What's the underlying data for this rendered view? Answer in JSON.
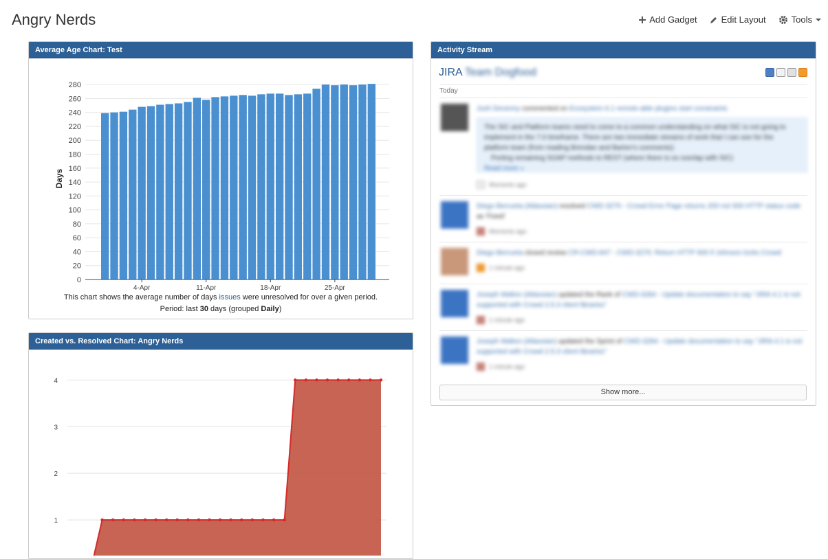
{
  "page": {
    "title": "Angry Nerds"
  },
  "toolbar": {
    "add_gadget": "Add Gadget",
    "edit_layout": "Edit Layout",
    "tools": "Tools"
  },
  "average_age": {
    "title": "Average Age Chart: Test",
    "caption_prefix": "This chart shows the average number of days ",
    "caption_link": "issues",
    "caption_suffix": " were unresolved for over a given period.",
    "period_prefix": "Period: last ",
    "period_days": "30",
    "period_middle": " days (grouped ",
    "period_group": "Daily",
    "period_suffix": ")"
  },
  "created_resolved": {
    "title": "Created vs. Resolved Chart: Angry Nerds"
  },
  "activity": {
    "title": "Activity Stream",
    "stream_name_prefix": "JIRA",
    "stream_name_rest": "Team Dogfood",
    "today_label": "Today",
    "show_more": "Show more...",
    "entries": [
      {
        "user": "Josh Devenny",
        "verb": " commented on ",
        "target": "Ecosystem 6.1 remote-able plugins start constraints",
        "quote": "The SIC and Platform teams need to come to a common understanding on what SIC is not going to implement in the 7.0 timeframe. There are two immediate streams of work that I can see for the platform team (from reading Brendan and Barton's comments):",
        "bullet": "Porting remaining SOAP methods to REST (where there is no overlap with SIC)",
        "read_more": "Read more »",
        "time": "Moments ago"
      },
      {
        "user": "Diego Berrueta (Atlassian)",
        "verb": " resolved ",
        "target": "CWD-3270 - Crowd Error Page returns 200 not 500 HTTP status code",
        "suffix": " as 'Fixed'",
        "time": "Moments ago"
      },
      {
        "user": "Diego Berrueta",
        "verb": " closed review ",
        "target": "CR-CWD-847 - CWD-3270: Return HTTP 500 if Johnson locks Crowd",
        "time": "1 minute ago"
      },
      {
        "user": "Joseph Walton (Atlassian)",
        "verb": " updated the Rank of ",
        "target": "CWD-3284 - Update documentation to say \"JIRA 4.1 is not supported with Crowd 2.5.3 client libraries\"",
        "time": "1 minute ago"
      },
      {
        "user": "Joseph Walton (Atlassian)",
        "verb": " updated the Sprint of ",
        "target": "CWD-3284 - Update documentation to say \"JIRA 4.1 is not supported with Crowd 2.5.3 client libraries\"",
        "time": "1 minute ago"
      }
    ]
  },
  "chart_data": [
    {
      "type": "bar",
      "ylabel": "Days",
      "ylim": [
        0,
        290
      ],
      "yticks": [
        0,
        20,
        40,
        60,
        80,
        100,
        120,
        140,
        160,
        180,
        200,
        220,
        240,
        260,
        280
      ],
      "xtick_labels": [
        "4-Apr",
        "11-Apr",
        "18-Apr",
        "25-Apr"
      ],
      "xtick_bar_index": [
        4,
        11,
        18,
        25
      ],
      "values": [
        239,
        240,
        241,
        244,
        248,
        249,
        251,
        252,
        253,
        255,
        261,
        258,
        262,
        263,
        264,
        265,
        264,
        266,
        267,
        267,
        265,
        266,
        267,
        274,
        280,
        279,
        280,
        279,
        280,
        281
      ],
      "grid": true,
      "color": "#4a8fd0"
    },
    {
      "type": "area",
      "ylim": [
        0,
        4.3
      ],
      "yticks": [
        1,
        2,
        3,
        4
      ],
      "x": [
        0,
        1,
        2,
        3,
        4,
        5,
        6,
        7,
        8,
        9,
        10,
        11,
        12,
        13,
        14,
        15,
        16,
        17,
        18,
        19,
        20,
        21,
        22,
        23,
        24,
        25,
        26,
        27
      ],
      "values": [
        0,
        1,
        1,
        1,
        1,
        1,
        1,
        1,
        1,
        1,
        1,
        1,
        1,
        1,
        1,
        1,
        1,
        1,
        1,
        4,
        4,
        4,
        4,
        4,
        4,
        4,
        4,
        4
      ],
      "grid": true,
      "line_color": "#d42a2a",
      "fill_color": "#c45c4a"
    }
  ]
}
